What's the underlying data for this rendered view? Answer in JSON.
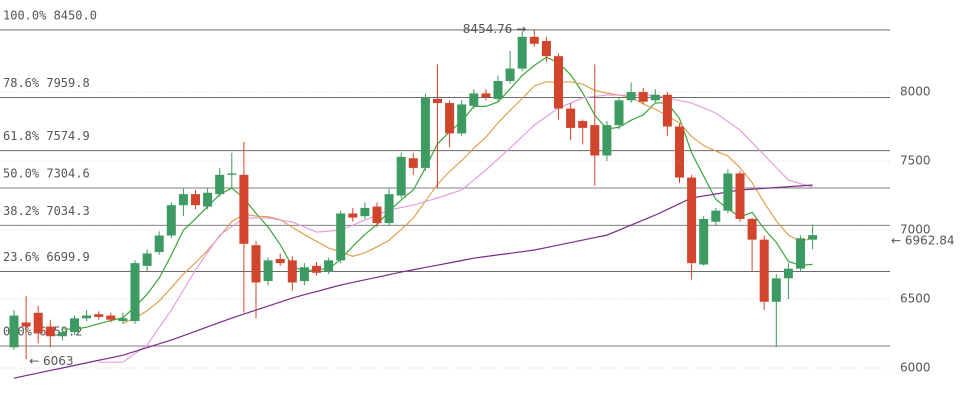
{
  "chart_data": {
    "type": "candlestick",
    "ylim": [
      5768,
      8667
    ],
    "yticks": [
      6000,
      6500,
      7000,
      7500,
      8000
    ],
    "grid": true,
    "up_color": "#3d9a62",
    "down_color": "#d2452d",
    "open": [
      6150,
      6330,
      6400,
      6300,
      6230,
      6260,
      6360,
      6390,
      6380,
      6340,
      6340,
      6740,
      6840,
      6960,
      7180,
      7260,
      7170,
      7260,
      7400,
      7400,
      6890,
      6630,
      6790,
      6780,
      6630,
      6740,
      6700,
      6780,
      7120,
      7100,
      7170,
      7050,
      7250,
      7520,
      7450,
      7950,
      7920,
      7700,
      7900,
      7990,
      7950,
      8080,
      8170,
      8400,
      8370,
      8260,
      7880,
      7790,
      7760,
      7540,
      7760,
      7940,
      8000,
      7940,
      7980,
      7750,
      7380,
      6750,
      7060,
      7140,
      7410,
      7080,
      6930,
      6480,
      6650,
      6720,
      6930
    ],
    "high": [
      6420,
      6520,
      6450,
      6350,
      6300,
      6380,
      6420,
      6410,
      6400,
      6400,
      6780,
      6860,
      6990,
      7200,
      7300,
      7290,
      7300,
      7450,
      7560,
      7640,
      6920,
      6800,
      6830,
      6810,
      6760,
      6770,
      6800,
      7140,
      7160,
      7200,
      7200,
      7300,
      7560,
      7560,
      7990,
      8200,
      7940,
      7940,
      8020,
      8020,
      8120,
      8300,
      8440,
      8454.76,
      8400,
      8280,
      7920,
      7800,
      8200,
      7790,
      7960,
      8070,
      8030,
      8020,
      8000,
      7770,
      7400,
      7100,
      7160,
      7440,
      7430,
      7090,
      6960,
      6680,
      6760,
      6960,
      7040
    ],
    "low": [
      6130,
      6063,
      6180,
      6150,
      6200,
      6240,
      6340,
      6350,
      6330,
      6320,
      6320,
      6700,
      6820,
      6940,
      7100,
      7150,
      7150,
      7240,
      7300,
      6400,
      6360,
      6600,
      6740,
      6560,
      6600,
      6670,
      6680,
      6760,
      7060,
      7080,
      7020,
      7030,
      7230,
      7400,
      7430,
      7300,
      7600,
      7680,
      7880,
      7940,
      7930,
      8060,
      8150,
      8330,
      8220,
      7800,
      7650,
      7620,
      7320,
      7500,
      7730,
      7920,
      7910,
      7920,
      7680,
      7340,
      6640,
      6740,
      7030,
      7120,
      7060,
      6700,
      6420,
      6150,
      6500,
      6700,
      6860
    ],
    "close": [
      6380,
      6300,
      6250,
      6230,
      6260,
      6360,
      6380,
      6370,
      6350,
      6360,
      6760,
      6830,
      6960,
      7180,
      7260,
      7180,
      7270,
      7400,
      7410,
      6900,
      6620,
      6780,
      6760,
      6620,
      6730,
      6690,
      6780,
      7120,
      7090,
      7160,
      7050,
      7260,
      7530,
      7450,
      7960,
      7920,
      7700,
      7910,
      7990,
      7960,
      8080,
      8170,
      8400,
      8350,
      8260,
      7880,
      7740,
      7740,
      7540,
      7760,
      7940,
      8000,
      7930,
      7980,
      7750,
      7380,
      6760,
      7080,
      7140,
      7410,
      7080,
      6930,
      6480,
      6650,
      6720,
      6940,
      6962.84
    ],
    "moving_averages": [
      {
        "color": "#3aa83a",
        "values": [
          null,
          null,
          null,
          null,
          6284,
          6280,
          6296,
          6320,
          6344,
          6364,
          6444,
          6534,
          6652,
          6818,
          6998,
          7082,
          7170,
          7258,
          7304,
          7232,
          7120,
          7022,
          6894,
          6736,
          6702,
          6716,
          6716,
          6788,
          6882,
          6968,
          7040,
          7136,
          7218,
          7290,
          7450,
          7624,
          7712,
          7788,
          7896,
          7896,
          7928,
          8022,
          8120,
          8192,
          8252,
          8212,
          8126,
          7994,
          7832,
          7732,
          7744,
          7796,
          7834,
          7922,
          7920,
          7808,
          7560,
          7390,
          7222,
          7154,
          7094,
          7128,
          7008,
          6910,
          6772,
          6744,
          6751
        ]
      },
      {
        "color": "#e0a050",
        "values": [
          null,
          null,
          null,
          null,
          null,
          null,
          null,
          null,
          null,
          6324,
          6362,
          6415,
          6486,
          6581,
          6681,
          6763,
          6852,
          6955,
          7061,
          7115,
          7101,
          7096,
          7076,
          7020,
          6967,
          6918,
          6869,
          6841,
          6809,
          6835,
          6878,
          6926,
          7003,
          7086,
          7209,
          7332,
          7424,
          7503,
          7593,
          7673,
          7776,
          7867,
          7954,
          8044,
          8074,
          8070,
          8074,
          8057,
          8012,
          7992,
          7978,
          7961,
          7914,
          7877,
          7826,
          7776,
          7678,
          7612,
          7572,
          7537,
          7451,
          7344,
          7199,
          7066,
          6963,
          6919,
          6940
        ]
      },
      {
        "color": "#e2a0e0",
        "values": [
          null,
          null,
          null,
          null,
          null,
          null,
          null,
          6042,
          6042,
          6042,
          6104,
          6166,
          6293,
          6420,
          6565,
          6710,
          6837,
          6963,
          7025,
          7087,
          7087,
          7087,
          7072,
          7058,
          7022,
          6985,
          6992,
          7000,
          7036,
          7072,
          7108,
          7145,
          7163,
          7181,
          7206,
          7232,
          7261,
          7290,
          7362,
          7435,
          7514,
          7594,
          7677,
          7761,
          7822,
          7884,
          7920,
          7957,
          7968,
          7978,
          7978,
          7978,
          7978,
          7978,
          7957,
          7938,
          7920,
          7884,
          7848,
          7786,
          7724,
          7634,
          7543,
          7452,
          7362,
          7336,
          7311
        ]
      },
      {
        "color": "#7a2a8a",
        "values": [
          5926,
          5945,
          5963,
          5982,
          6000,
          6019,
          6037,
          6056,
          6074,
          6093,
          6120,
          6148,
          6175,
          6202,
          6234,
          6266,
          6298,
          6330,
          6362,
          6391,
          6420,
          6449,
          6478,
          6507,
          6531,
          6554,
          6578,
          6601,
          6620,
          6639,
          6657,
          6676,
          6695,
          6712,
          6729,
          6745,
          6762,
          6779,
          6796,
          6808,
          6820,
          6831,
          6843,
          6855,
          6873,
          6891,
          6909,
          6927,
          6945,
          6963,
          6999,
          7036,
          7072,
          7108,
          7149,
          7191,
          7232,
          7247,
          7261,
          7276,
          7290,
          7296,
          7302,
          7308,
          7314,
          7320,
          7326
        ]
      }
    ],
    "fib_levels": [
      {
        "value": 8450,
        "label": "100.0% 8450.0"
      },
      {
        "value": 7959.8,
        "label": "78.6% 7959.8"
      },
      {
        "value": 7574.9,
        "label": "61.8% 7574.9"
      },
      {
        "value": 7304.6,
        "label": "50.0% 7304.6"
      },
      {
        "value": 7034.3,
        "label": "38.2% 7034.3"
      },
      {
        "value": 6699.9,
        "label": "23.6% 6699.9"
      },
      {
        "value": 6159.2,
        "label": "0.0% 6159.2"
      }
    ],
    "fib_color": "#555555",
    "annotations": [
      {
        "text": "8454.76 →",
        "value": 8454.76,
        "index": 43,
        "side": "left"
      },
      {
        "text": "← 6063",
        "value": 6063,
        "index": 1,
        "side": "right"
      }
    ],
    "last_price": {
      "text": "← 6962.84",
      "value": 6962.84,
      "color": "#e08a40"
    }
  }
}
